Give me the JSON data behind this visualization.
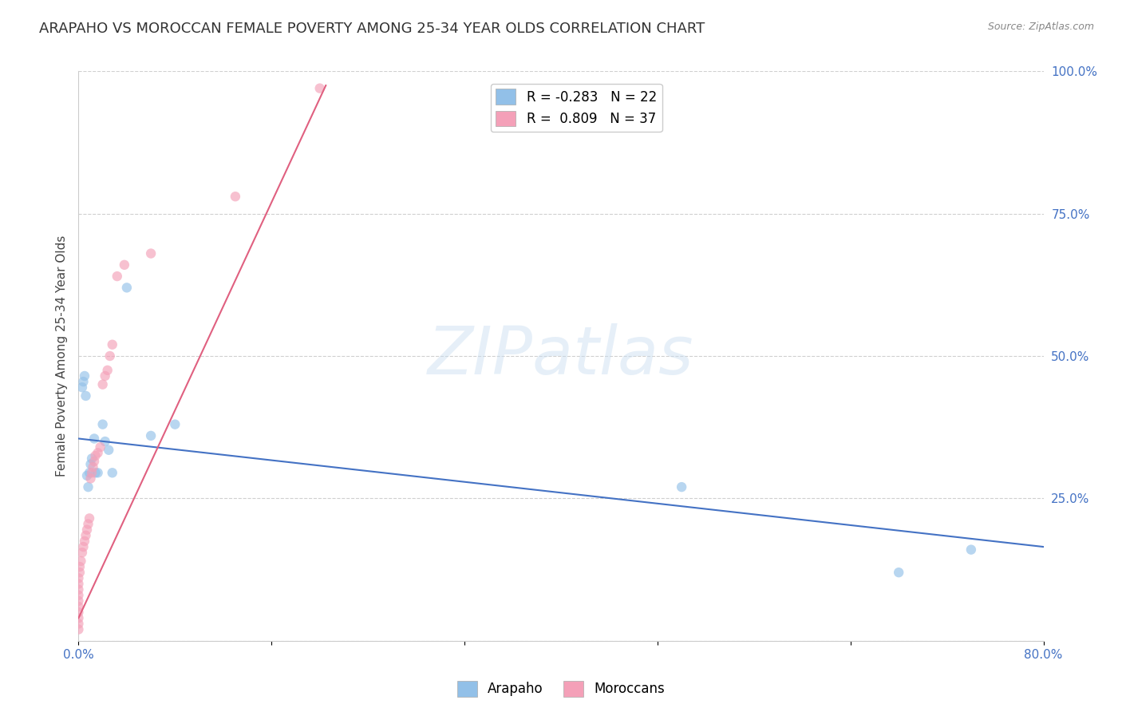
{
  "title": "ARAPAHO VS MOROCCAN FEMALE POVERTY AMONG 25-34 YEAR OLDS CORRELATION CHART",
  "source": "Source: ZipAtlas.com",
  "ylabel": "Female Poverty Among 25-34 Year Olds",
  "xlim": [
    0.0,
    0.8
  ],
  "ylim": [
    0.0,
    1.0
  ],
  "xticks": [
    0.0,
    0.16,
    0.32,
    0.48,
    0.64,
    0.8
  ],
  "xticklabels": [
    "0.0%",
    "",
    "",
    "",
    "",
    "80.0%"
  ],
  "yticks_right": [
    0.0,
    0.25,
    0.5,
    0.75,
    1.0
  ],
  "yticklabels_right": [
    "",
    "25.0%",
    "50.0%",
    "75.0%",
    "100.0%"
  ],
  "grid_color": "#d0d0d0",
  "background_color": "#ffffff",
  "arapaho_color": "#92c0e8",
  "moroccan_color": "#f4a0b8",
  "arapaho_line_color": "#4472c4",
  "moroccan_line_color": "#e06080",
  "arapaho_R": -0.283,
  "arapaho_N": 22,
  "moroccan_R": 0.809,
  "moroccan_N": 37,
  "arapaho_x": [
    0.003,
    0.004,
    0.005,
    0.006,
    0.007,
    0.008,
    0.009,
    0.01,
    0.011,
    0.013,
    0.014,
    0.016,
    0.02,
    0.022,
    0.025,
    0.028,
    0.04,
    0.06,
    0.08,
    0.5,
    0.68,
    0.74
  ],
  "arapaho_y": [
    0.445,
    0.455,
    0.465,
    0.43,
    0.29,
    0.27,
    0.295,
    0.31,
    0.32,
    0.355,
    0.295,
    0.295,
    0.38,
    0.35,
    0.335,
    0.295,
    0.62,
    0.36,
    0.38,
    0.27,
    0.12,
    0.16
  ],
  "moroccan_x": [
    0.0,
    0.0,
    0.0,
    0.0,
    0.0,
    0.0,
    0.0,
    0.0,
    0.0,
    0.0,
    0.001,
    0.001,
    0.002,
    0.003,
    0.004,
    0.005,
    0.006,
    0.007,
    0.008,
    0.009,
    0.01,
    0.011,
    0.012,
    0.013,
    0.014,
    0.016,
    0.018,
    0.02,
    0.022,
    0.024,
    0.026,
    0.028,
    0.032,
    0.038,
    0.06,
    0.13,
    0.2
  ],
  "moroccan_y": [
    0.02,
    0.03,
    0.04,
    0.05,
    0.06,
    0.07,
    0.08,
    0.09,
    0.1,
    0.11,
    0.12,
    0.13,
    0.14,
    0.155,
    0.165,
    0.175,
    0.185,
    0.195,
    0.205,
    0.215,
    0.285,
    0.295,
    0.305,
    0.315,
    0.325,
    0.33,
    0.34,
    0.45,
    0.465,
    0.475,
    0.5,
    0.52,
    0.64,
    0.66,
    0.68,
    0.78,
    0.97
  ],
  "moroccan_line_x0": 0.0,
  "moroccan_line_y0": 0.04,
  "moroccan_line_x1": 0.205,
  "moroccan_line_y1": 0.975,
  "arapaho_line_x0": 0.0,
  "arapaho_line_y0": 0.355,
  "arapaho_line_x1": 0.8,
  "arapaho_line_y1": 0.165,
  "watermark_text": "ZIPatlas",
  "marker_size": 80,
  "alpha": 0.65,
  "title_fontsize": 13,
  "axis_label_fontsize": 11,
  "tick_fontsize": 11,
  "legend_fontsize": 12
}
